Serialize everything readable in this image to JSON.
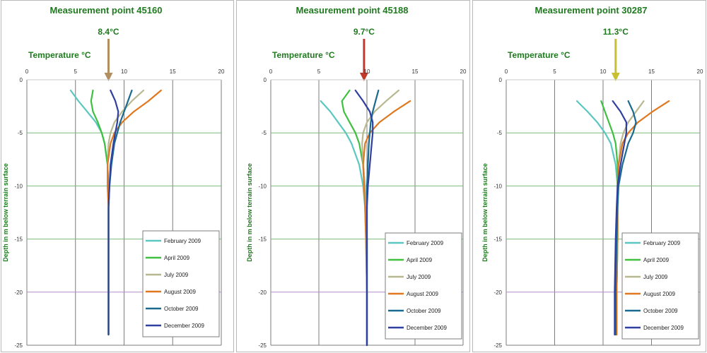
{
  "panels": [
    {
      "title": "Measurement point 45160",
      "mean_label": "8.4°C",
      "mean_value": 8.4,
      "arrow_color": "#b09060",
      "temp_label": "Temperature °C",
      "y_axis_label": "Depth in m below terrain surface"
    },
    {
      "title": "Measurement point 45188",
      "mean_label": "9.7°C",
      "mean_value": 9.7,
      "arrow_color": "#c0392b",
      "temp_label": "Temperature °C",
      "y_axis_label": "Depth in m below terrain surface"
    },
    {
      "title": "Measurement point 30287",
      "mean_label": "11.3°C",
      "mean_value": 11.3,
      "arrow_color": "#c8c030",
      "temp_label": "Temperature °C",
      "y_axis_label": "Depth in m below terrain surface"
    }
  ],
  "chart_data": [
    {
      "type": "line",
      "title": "Measurement point 45160",
      "xlabel": "Temperature °C",
      "ylabel": "Depth in m below terrain surface",
      "xlim": [
        0,
        20
      ],
      "ylim": [
        -25,
        0
      ],
      "x_ticks": [
        "0",
        "5",
        "10",
        "15",
        "20"
      ],
      "y_ticks": [
        "0",
        "-5",
        "-10",
        "-15",
        "-20",
        "-25"
      ],
      "grid": true,
      "legend_position": "bottom-right",
      "series": [
        {
          "name": "February 2009",
          "color": "#5ac8c0",
          "depths": [
            -1,
            -2,
            -3,
            -4,
            -5,
            -6,
            -8,
            -10,
            -12,
            -15,
            -20,
            -24
          ],
          "temps": [
            4.5,
            5.3,
            6.2,
            7.1,
            7.7,
            8.0,
            8.3,
            8.4,
            8.4,
            8.4,
            8.4,
            8.4
          ]
        },
        {
          "name": "April 2009",
          "color": "#40c040",
          "depths": [
            -1,
            -2,
            -3,
            -4,
            -5,
            -6,
            -8,
            -10,
            -12,
            -15,
            -20,
            -24
          ],
          "temps": [
            6.8,
            6.6,
            6.8,
            7.3,
            7.7,
            8.0,
            8.3,
            8.4,
            8.4,
            8.4,
            8.4,
            8.4
          ]
        },
        {
          "name": "July 2009",
          "color": "#b8b890",
          "depths": [
            -1,
            -2,
            -3,
            -4,
            -5,
            -6,
            -8,
            -10,
            -12,
            -15,
            -20,
            -24
          ],
          "temps": [
            12.0,
            10.8,
            9.8,
            9.0,
            8.6,
            8.4,
            8.3,
            8.3,
            8.4,
            8.4,
            8.4,
            8.4
          ]
        },
        {
          "name": "August 2009",
          "color": "#e07820",
          "depths": [
            -1,
            -2,
            -3,
            -4,
            -5,
            -6,
            -8,
            -10,
            -12,
            -15,
            -20,
            -24
          ],
          "temps": [
            13.8,
            12.5,
            11.0,
            9.8,
            9.0,
            8.6,
            8.3,
            8.3,
            8.4,
            8.4,
            8.4,
            8.4
          ]
        },
        {
          "name": "October 2009",
          "color": "#1a6a90",
          "depths": [
            -1,
            -2,
            -3,
            -4,
            -5,
            -6,
            -8,
            -10,
            -12,
            -15,
            -20,
            -24
          ],
          "temps": [
            10.8,
            10.4,
            10.0,
            9.6,
            9.3,
            9.0,
            8.7,
            8.5,
            8.4,
            8.4,
            8.4,
            8.4
          ]
        },
        {
          "name": "December 2009",
          "color": "#3040a0",
          "depths": [
            -1,
            -2,
            -3,
            -4,
            -5,
            -6,
            -8,
            -10,
            -12,
            -15,
            -20,
            -24
          ],
          "temps": [
            8.6,
            9.1,
            9.4,
            9.3,
            9.1,
            8.9,
            8.6,
            8.5,
            8.4,
            8.4,
            8.4,
            8.4
          ]
        }
      ]
    },
    {
      "type": "line",
      "title": "Measurement point 45188",
      "xlabel": "Temperature °C",
      "ylabel": "Depth in m below terrain surface",
      "xlim": [
        0,
        20
      ],
      "ylim": [
        -25,
        0
      ],
      "x_ticks": [
        "0",
        "5",
        "10",
        "15",
        "20"
      ],
      "y_ticks": [
        "0",
        "-5",
        "-10",
        "-15",
        "-20",
        "-25"
      ],
      "grid": true,
      "legend_position": "bottom-right",
      "series": [
        {
          "name": "February 2009",
          "color": "#5ac8c0",
          "depths": [
            -2,
            -3,
            -4,
            -5,
            -6,
            -8,
            -10,
            -12,
            -15,
            -20,
            -25
          ],
          "temps": [
            5.2,
            6.2,
            7.0,
            7.8,
            8.4,
            9.2,
            9.6,
            9.8,
            9.9,
            10.0,
            10.0
          ]
        },
        {
          "name": "April 2009",
          "color": "#40c040",
          "depths": [
            -1,
            -2,
            -3,
            -4,
            -5,
            -6,
            -8,
            -10,
            -12,
            -15,
            -20,
            -25
          ],
          "temps": [
            8.2,
            7.4,
            7.6,
            8.2,
            8.8,
            9.2,
            9.6,
            9.8,
            9.9,
            10.0,
            10.0,
            10.0
          ]
        },
        {
          "name": "July 2009",
          "color": "#b8b890",
          "depths": [
            -1,
            -2,
            -3,
            -4,
            -5,
            -6,
            -8,
            -10,
            -12,
            -15,
            -20,
            -25
          ],
          "temps": [
            13.3,
            12.0,
            10.8,
            10.0,
            9.6,
            9.5,
            9.6,
            9.8,
            9.9,
            10.0,
            10.0,
            10.0
          ]
        },
        {
          "name": "August 2009",
          "color": "#e07820",
          "depths": [
            -2,
            -3,
            -4,
            -5,
            -6,
            -8,
            -10,
            -12,
            -15,
            -20,
            -25
          ],
          "temps": [
            14.5,
            12.8,
            11.3,
            10.3,
            9.8,
            9.6,
            9.7,
            9.8,
            9.9,
            10.0,
            10.0
          ]
        },
        {
          "name": "October 2009",
          "color": "#1a6a90",
          "depths": [
            -1,
            -2,
            -3,
            -4,
            -5,
            -6,
            -8,
            -10,
            -12,
            -15,
            -20,
            -25
          ],
          "temps": [
            11.2,
            10.9,
            10.6,
            10.4,
            10.3,
            10.2,
            10.1,
            10.0,
            10.0,
            10.0,
            10.0,
            10.0
          ]
        },
        {
          "name": "December 2009",
          "color": "#3040a0",
          "depths": [
            -1,
            -2,
            -3,
            -4,
            -5,
            -6,
            -8,
            -10,
            -12,
            -15,
            -20,
            -25
          ],
          "temps": [
            8.8,
            9.6,
            10.3,
            10.6,
            10.6,
            10.5,
            10.3,
            10.1,
            10.0,
            10.0,
            10.0,
            10.0
          ]
        }
      ]
    },
    {
      "type": "line",
      "title": "Measurement point 30287",
      "xlabel": "Temperature °C",
      "ylabel": "Depth in m below terrain surface",
      "xlim": [
        0,
        20
      ],
      "ylim": [
        -25,
        0
      ],
      "x_ticks": [
        "0",
        "5",
        "10",
        "15",
        "20"
      ],
      "y_ticks": [
        "0",
        "-5",
        "-10",
        "-15",
        "-20",
        "-25"
      ],
      "grid": true,
      "legend_position": "bottom-right",
      "series": [
        {
          "name": "February 2009",
          "color": "#5ac8c0",
          "depths": [
            -2,
            -3,
            -4,
            -5,
            -6,
            -8,
            -10,
            -12,
            -15,
            -20,
            -24
          ],
          "temps": [
            7.3,
            8.4,
            9.4,
            10.2,
            10.8,
            11.3,
            11.5,
            11.5,
            11.5,
            11.4,
            11.4
          ]
        },
        {
          "name": "April 2009",
          "color": "#40c040",
          "depths": [
            -2,
            -3,
            -4,
            -5,
            -6,
            -8,
            -10,
            -12,
            -15,
            -20,
            -24
          ],
          "temps": [
            9.8,
            10.2,
            10.6,
            11.0,
            11.3,
            11.5,
            11.5,
            11.5,
            11.5,
            11.4,
            11.4
          ]
        },
        {
          "name": "July 2009",
          "color": "#b8b890",
          "depths": [
            -2,
            -3,
            -4,
            -5,
            -6,
            -8,
            -10,
            -12,
            -15,
            -20,
            -24
          ],
          "temps": [
            14.2,
            13.4,
            12.6,
            12.1,
            11.8,
            11.6,
            11.5,
            11.5,
            11.5,
            11.4,
            11.4
          ]
        },
        {
          "name": "August 2009",
          "color": "#e07820",
          "depths": [
            -2,
            -3,
            -4,
            -5,
            -6,
            -8,
            -10,
            -12,
            -15,
            -20,
            -24
          ],
          "temps": [
            16.8,
            15.1,
            13.6,
            12.6,
            12.0,
            11.6,
            11.5,
            11.5,
            11.5,
            11.4,
            11.4
          ]
        },
        {
          "name": "October 2009",
          "color": "#1a6a90",
          "depths": [
            -2,
            -3,
            -4,
            -5,
            -6,
            -8,
            -10,
            -12,
            -15,
            -20,
            -24
          ],
          "temps": [
            12.6,
            13.1,
            13.4,
            13.1,
            12.6,
            12.0,
            11.6,
            11.5,
            11.4,
            11.3,
            11.3
          ]
        },
        {
          "name": "December 2009",
          "color": "#3040a0",
          "depths": [
            -2,
            -3,
            -4,
            -5,
            -6,
            -8,
            -10,
            -12,
            -15,
            -20,
            -24
          ],
          "temps": [
            11.0,
            11.8,
            12.4,
            12.4,
            12.2,
            11.8,
            11.5,
            11.4,
            11.3,
            11.2,
            11.2
          ]
        }
      ]
    }
  ]
}
